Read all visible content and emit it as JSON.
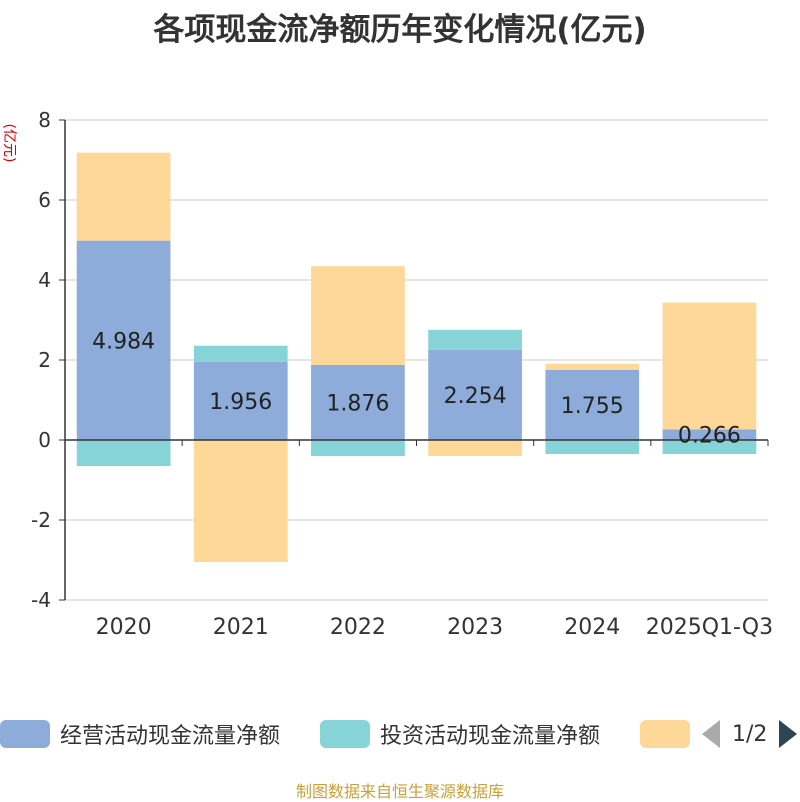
{
  "title": "各项现金流净额历年变化情况(亿元)",
  "unit_label": "(亿元)",
  "source": "制图数据来自恒生聚源数据库",
  "legend": {
    "items": [
      {
        "label": "经营活动现金流量净额",
        "color": "#8eacd9"
      },
      {
        "label": "投资活动现金流量净额",
        "color": "#86d3d8"
      },
      {
        "label": "",
        "color": "#fdd898"
      }
    ],
    "page": "1/2"
  },
  "chart_data": {
    "type": "bar",
    "stacked": true,
    "title": "各项现金流净额历年变化情况(亿元)",
    "ylabel": "(亿元)",
    "ylim": [
      -4,
      8
    ],
    "yticks": [
      -4,
      -2,
      0,
      2,
      4,
      6,
      8
    ],
    "categories": [
      "2020",
      "2021",
      "2022",
      "2023",
      "2024",
      "2025Q1-Q3"
    ],
    "series": [
      {
        "name": "经营活动现金流量净额",
        "color": "#8eacd9",
        "values": [
          4.984,
          1.956,
          1.876,
          2.254,
          1.755,
          0.266
        ],
        "labels": [
          "4.984",
          "1.956",
          "1.876",
          "2.254",
          "1.755",
          "0.266"
        ]
      },
      {
        "name": "投资活动现金流量净额",
        "color": "#86d3d8",
        "values": [
          -0.65,
          0.4,
          -0.4,
          0.5,
          -0.35,
          -0.35
        ]
      },
      {
        "name": "",
        "color": "#fdd898",
        "values": [
          2.2,
          -3.05,
          2.47,
          -0.4,
          0.15,
          3.17
        ]
      }
    ]
  }
}
